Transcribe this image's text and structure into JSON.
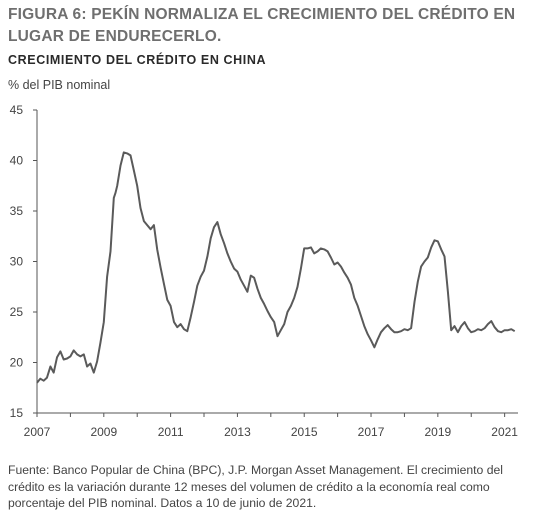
{
  "figure": {
    "title": "FIGURA 6: PEKÍN NORMALIZA EL CRECIMIENTO DEL CRÉDITO EN LUGAR DE ENDURECERLO.",
    "subtitle": "CRECIMIENTO DEL CRÉDITO EN CHINA",
    "unit": "% del PIB nominal",
    "source": "Fuente: Banco Popular de China (BPC), J.P. Morgan Asset Management. El crecimiento del crédito es la variación durante 12 meses del volumen de crédito a la economía real como porcentaje del PIB nominal. Datos a 10 de junio de 2021."
  },
  "colors": {
    "line": "#5a5a5a",
    "axis": "#555555",
    "title": "#6f6f6f"
  },
  "chart_data": {
    "type": "line",
    "title": "CRECIMIENTO DEL CRÉDITO EN CHINA",
    "ylabel": "% del PIB nominal",
    "xlabel": "",
    "xlim": [
      2007.0,
      2021.4
    ],
    "ylim": [
      15,
      45
    ],
    "yticks": [
      15,
      20,
      25,
      30,
      35,
      40,
      45
    ],
    "xticks": [
      "2007",
      "2009",
      "2011",
      "2013",
      "2015",
      "2017",
      "2019",
      "2021"
    ],
    "grid": false,
    "legend": "none",
    "series": [
      {
        "x": [
          2007.0,
          2007.1,
          2007.2,
          2007.3,
          2007.4,
          2007.5,
          2007.6,
          2007.7,
          2007.8,
          2007.9,
          2008.0,
          2008.1,
          2008.2,
          2008.3,
          2008.4,
          2008.5,
          2008.6,
          2008.7,
          2008.8,
          2008.9,
          2009.0,
          2009.1,
          2009.2,
          2009.3,
          2009.35,
          2009.4,
          2009.5,
          2009.6,
          2009.7,
          2009.8,
          2009.9,
          2010.0,
          2010.1,
          2010.2,
          2010.3,
          2010.4,
          2010.5,
          2010.6,
          2010.7,
          2010.8,
          2010.9,
          2011.0,
          2011.1,
          2011.2,
          2011.3,
          2011.4,
          2011.5,
          2011.6,
          2011.7,
          2011.8,
          2011.9,
          2012.0,
          2012.1,
          2012.2,
          2012.3,
          2012.4,
          2012.5,
          2012.6,
          2012.7,
          2012.8,
          2012.9,
          2013.0,
          2013.1,
          2013.2,
          2013.3,
          2013.4,
          2013.5,
          2013.6,
          2013.7,
          2013.8,
          2013.9,
          2014.0,
          2014.1,
          2014.2,
          2014.3,
          2014.4,
          2014.5,
          2014.6,
          2014.7,
          2014.8,
          2014.9,
          2015.0,
          2015.1,
          2015.2,
          2015.3,
          2015.4,
          2015.5,
          2015.6,
          2015.7,
          2015.8,
          2015.9,
          2016.0,
          2016.1,
          2016.2,
          2016.3,
          2016.4,
          2016.5,
          2016.6,
          2016.7,
          2016.8,
          2016.9,
          2017.0,
          2017.1,
          2017.2,
          2017.3,
          2017.4,
          2017.5,
          2017.6,
          2017.7,
          2017.8,
          2017.9,
          2018.0,
          2018.1,
          2018.2,
          2018.3,
          2018.4,
          2018.5,
          2018.6,
          2018.7,
          2018.8,
          2018.9,
          2019.0,
          2019.1,
          2019.2,
          2019.3,
          2019.4,
          2019.5,
          2019.6,
          2019.7,
          2019.8,
          2019.9,
          2020.0,
          2020.1,
          2020.2,
          2020.3,
          2020.4,
          2020.5,
          2020.6,
          2020.7,
          2020.8,
          2020.9,
          2021.0,
          2021.1,
          2021.2,
          2021.3
        ],
        "values": [
          18.0,
          18.4,
          18.2,
          18.5,
          19.6,
          19.0,
          20.5,
          21.1,
          20.3,
          20.4,
          20.6,
          21.2,
          20.8,
          20.6,
          20.8,
          19.6,
          19.9,
          19.0,
          20.1,
          22.0,
          24.0,
          28.5,
          31.0,
          36.3,
          36.8,
          37.5,
          39.5,
          40.8,
          40.7,
          40.5,
          39.0,
          37.5,
          35.3,
          34.0,
          33.6,
          33.2,
          33.6,
          31.2,
          29.4,
          27.8,
          26.2,
          25.6,
          24.0,
          23.5,
          23.8,
          23.3,
          23.1,
          24.5,
          26.0,
          27.6,
          28.5,
          29.1,
          30.5,
          32.3,
          33.4,
          33.9,
          32.7,
          31.8,
          30.8,
          30.0,
          29.3,
          29.0,
          28.2,
          27.6,
          27.0,
          28.6,
          28.4,
          27.3,
          26.4,
          25.8,
          25.1,
          24.5,
          24.0,
          22.6,
          23.2,
          23.8,
          25.0,
          25.6,
          26.4,
          27.5,
          29.3,
          31.3,
          31.3,
          31.4,
          30.8,
          31.0,
          31.3,
          31.2,
          31.0,
          30.4,
          29.7,
          29.9,
          29.5,
          28.9,
          28.4,
          27.7,
          26.4,
          25.6,
          24.6,
          23.6,
          22.8,
          22.2,
          21.5,
          22.3,
          23.0,
          23.4,
          23.7,
          23.3,
          23.0,
          23.0,
          23.1,
          23.3,
          23.2,
          23.4,
          26.0,
          28.0,
          29.5,
          30.0,
          30.4,
          31.4,
          32.1,
          32.0,
          31.2,
          30.5,
          27.0,
          23.2,
          23.6,
          23.0,
          23.6,
          24.0,
          23.4,
          23.0,
          23.1,
          23.3,
          23.2,
          23.4,
          23.8,
          24.1,
          23.5,
          23.1,
          23.0,
          23.2,
          23.2,
          23.3,
          23.1
        ],
        "values_note": ""
      }
    ]
  }
}
